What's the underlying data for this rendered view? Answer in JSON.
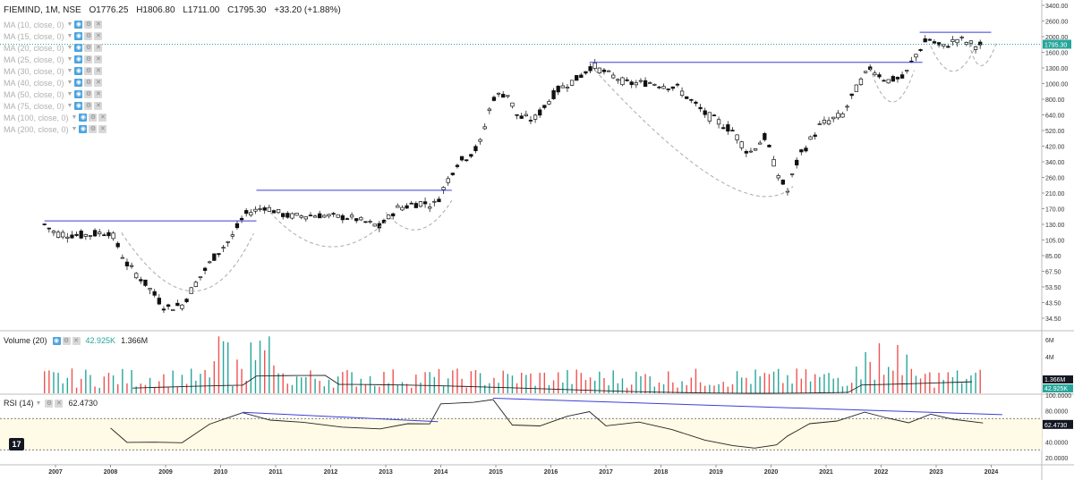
{
  "header": {
    "symbol": "FIEMIND, 1M, NSE",
    "open": "O1776.25",
    "high": "H1806.80",
    "low": "L1711.00",
    "close": "C1795.30",
    "change": "+33.20 (+1.88%)"
  },
  "ma_items": [
    {
      "label": "MA (10, close, 0)"
    },
    {
      "label": "MA (15, close, 0)"
    },
    {
      "label": "MA (20, close, 0)"
    },
    {
      "label": "MA (25, close, 0)"
    },
    {
      "label": "MA (30, close, 0)"
    },
    {
      "label": "MA (40, close, 0)"
    },
    {
      "label": "MA (50, close, 0)"
    },
    {
      "label": "MA (75, close, 0)"
    },
    {
      "label": "MA (100, close, 0)"
    },
    {
      "label": "MA (200, close, 0)"
    }
  ],
  "volume_pane": {
    "label": "Volume (20)",
    "value_green": "42.925K",
    "value_black": "1.366M"
  },
  "rsi_pane": {
    "label": "RSI (14)",
    "value": "62.4730"
  },
  "colors": {
    "up": "#26a69a",
    "down": "#ef5350",
    "trendline": "#3a3fd6",
    "dashed": "#aaaaaa",
    "rsi_band": "#fffbe6"
  },
  "chart_data": [
    {
      "type": "candlestick",
      "scale": "log",
      "x_ticks": [
        "2007",
        "2008",
        "2009",
        "2010",
        "2011",
        "2012",
        "2013",
        "2014",
        "2015",
        "2016",
        "2017",
        "2018",
        "2019",
        "2020",
        "2021",
        "2022",
        "2023",
        "2024"
      ],
      "y_ticks": [
        "3400.00",
        "2600.00",
        "2000.00",
        "1600.00",
        "1300.00",
        "1000.00",
        "800.00",
        "640.00",
        "520.00",
        "420.00",
        "340.00",
        "260.00",
        "210.00",
        "170.00",
        "130.00",
        "105.00",
        "85.00",
        "67.50",
        "53.50",
        "43.50",
        "34.50"
      ],
      "ylim": [
        30,
        3600
      ],
      "last_price_label": "1795.30",
      "monthly_closes": [
        {
          "t": 2006.8,
          "v": 130
        },
        {
          "t": 2007.0,
          "v": 115
        },
        {
          "t": 2007.5,
          "v": 112
        },
        {
          "t": 2008.0,
          "v": 118
        },
        {
          "t": 2008.3,
          "v": 75
        },
        {
          "t": 2008.6,
          "v": 58
        },
        {
          "t": 2009.0,
          "v": 40
        },
        {
          "t": 2009.3,
          "v": 42
        },
        {
          "t": 2009.6,
          "v": 60
        },
        {
          "t": 2009.9,
          "v": 85
        },
        {
          "t": 2010.2,
          "v": 108
        },
        {
          "t": 2010.45,
          "v": 155
        },
        {
          "t": 2010.8,
          "v": 175
        },
        {
          "t": 2011.2,
          "v": 150
        },
        {
          "t": 2011.8,
          "v": 152
        },
        {
          "t": 2012.4,
          "v": 145
        },
        {
          "t": 2012.9,
          "v": 125
        },
        {
          "t": 2013.2,
          "v": 170
        },
        {
          "t": 2013.6,
          "v": 185
        },
        {
          "t": 2013.9,
          "v": 180
        },
        {
          "t": 2014.1,
          "v": 240
        },
        {
          "t": 2014.3,
          "v": 330
        },
        {
          "t": 2014.7,
          "v": 420
        },
        {
          "t": 2014.95,
          "v": 820
        },
        {
          "t": 2015.2,
          "v": 880
        },
        {
          "t": 2015.4,
          "v": 620
        },
        {
          "t": 2015.7,
          "v": 600
        },
        {
          "t": 2016.1,
          "v": 900
        },
        {
          "t": 2016.5,
          "v": 1100
        },
        {
          "t": 2016.75,
          "v": 1350
        },
        {
          "t": 2017.0,
          "v": 1200
        },
        {
          "t": 2017.4,
          "v": 1000
        },
        {
          "t": 2017.8,
          "v": 1020
        },
        {
          "t": 2018.3,
          "v": 940
        },
        {
          "t": 2018.8,
          "v": 650
        },
        {
          "t": 2019.3,
          "v": 520
        },
        {
          "t": 2019.6,
          "v": 380
        },
        {
          "t": 2019.9,
          "v": 480
        },
        {
          "t": 2020.15,
          "v": 260
        },
        {
          "t": 2020.3,
          "v": 215
        },
        {
          "t": 2020.5,
          "v": 360
        },
        {
          "t": 2020.9,
          "v": 560
        },
        {
          "t": 2021.3,
          "v": 640
        },
        {
          "t": 2021.6,
          "v": 1000
        },
        {
          "t": 2021.8,
          "v": 1300
        },
        {
          "t": 2022.1,
          "v": 1050
        },
        {
          "t": 2022.4,
          "v": 1100
        },
        {
          "t": 2022.6,
          "v": 1500
        },
        {
          "t": 2022.85,
          "v": 1950
        },
        {
          "t": 2023.1,
          "v": 1700
        },
        {
          "t": 2023.4,
          "v": 1950
        },
        {
          "t": 2023.7,
          "v": 1760
        },
        {
          "t": 2023.85,
          "v": 1795
        }
      ],
      "resistance_lines": [
        {
          "x1": 2006.8,
          "x2": 2010.65,
          "y": 138
        },
        {
          "x1": 2010.65,
          "x2": 2014.2,
          "y": 218
        },
        {
          "x1": 2016.7,
          "x2": 2022.75,
          "y": 1400
        },
        {
          "x1": 2022.7,
          "x2": 2024.0,
          "y": 2150
        }
      ]
    },
    {
      "type": "bar",
      "title": "Volume (20)",
      "y_ticks": [
        "6M",
        "4M"
      ],
      "markers": [
        "1.366M",
        "42.925K"
      ]
    },
    {
      "type": "line",
      "title": "RSI (14)",
      "y_ticks": [
        "100.0000",
        "80.0000",
        "62.4730",
        "40.0000",
        "20.0000"
      ],
      "ylim": [
        20,
        100
      ],
      "band": [
        30,
        70
      ],
      "values": [
        {
          "t": 2008.0,
          "v": 58
        },
        {
          "t": 2008.3,
          "v": 42
        },
        {
          "t": 2008.8,
          "v": 38
        },
        {
          "t": 2009.3,
          "v": 40
        },
        {
          "t": 2009.8,
          "v": 62
        },
        {
          "t": 2010.4,
          "v": 76
        },
        {
          "t": 2010.9,
          "v": 70
        },
        {
          "t": 2011.5,
          "v": 64
        },
        {
          "t": 2012.2,
          "v": 62
        },
        {
          "t": 2012.9,
          "v": 55
        },
        {
          "t": 2013.4,
          "v": 62
        },
        {
          "t": 2013.8,
          "v": 66
        },
        {
          "t": 2014.0,
          "v": 88
        },
        {
          "t": 2014.6,
          "v": 93
        },
        {
          "t": 2014.95,
          "v": 96
        },
        {
          "t": 2015.3,
          "v": 64
        },
        {
          "t": 2015.8,
          "v": 62
        },
        {
          "t": 2016.3,
          "v": 70
        },
        {
          "t": 2016.7,
          "v": 78
        },
        {
          "t": 2017.0,
          "v": 60
        },
        {
          "t": 2017.6,
          "v": 64
        },
        {
          "t": 2018.2,
          "v": 55
        },
        {
          "t": 2018.8,
          "v": 42
        },
        {
          "t": 2019.3,
          "v": 33
        },
        {
          "t": 2019.7,
          "v": 32
        },
        {
          "t": 2020.1,
          "v": 36
        },
        {
          "t": 2020.3,
          "v": 45
        },
        {
          "t": 2020.7,
          "v": 62
        },
        {
          "t": 2021.2,
          "v": 64
        },
        {
          "t": 2021.7,
          "v": 80
        },
        {
          "t": 2022.1,
          "v": 70
        },
        {
          "t": 2022.5,
          "v": 66
        },
        {
          "t": 2022.9,
          "v": 78
        },
        {
          "t": 2023.3,
          "v": 68
        },
        {
          "t": 2023.85,
          "v": 62.47
        }
      ],
      "trendlines": [
        {
          "x1": 2010.4,
          "y1": 78,
          "x2": 2013.95,
          "y2": 66
        },
        {
          "x1": 2014.95,
          "y1": 96,
          "x2": 2024.2,
          "y2": 75
        }
      ]
    }
  ]
}
